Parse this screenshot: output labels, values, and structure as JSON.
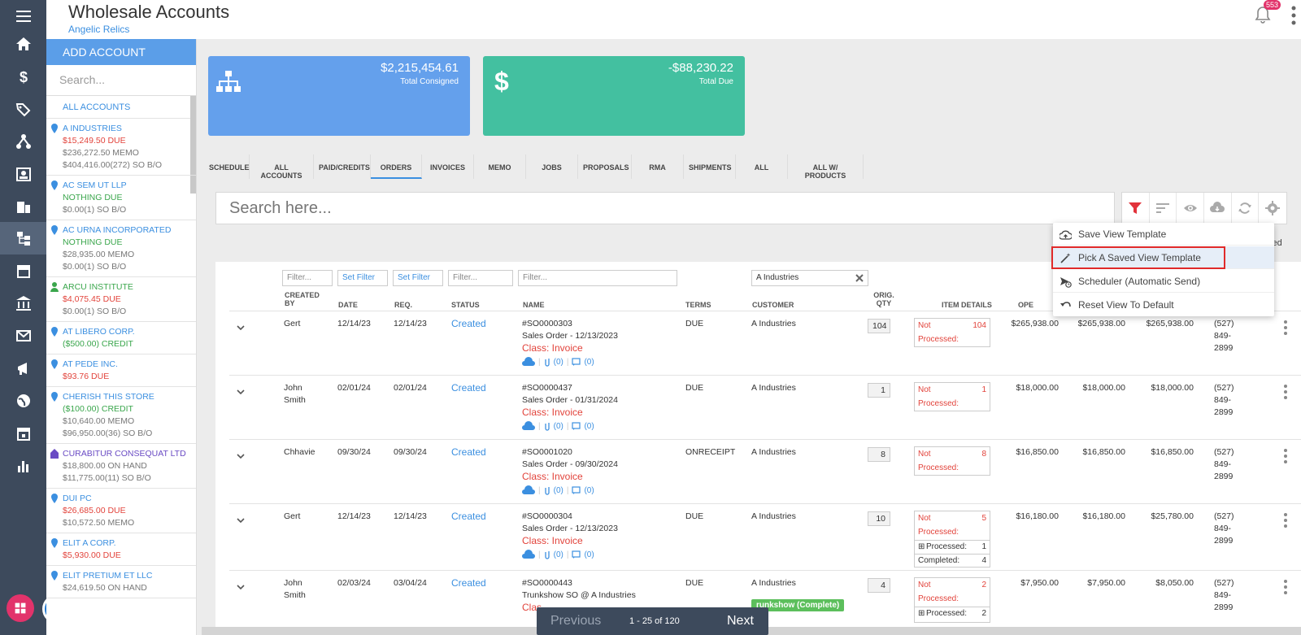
{
  "header": {
    "title": "Wholesale Accounts",
    "subtitle": "Angelic Relics",
    "notification_count": "553"
  },
  "sidebar": {
    "add_label": "ADD ACCOUNT",
    "search_placeholder": "Search...",
    "all_label": "ALL ACCOUNTS",
    "accounts": [
      {
        "name": "A INDUSTRIES",
        "lines": [
          "$15,249.50 DUE",
          "$236,272.50 MEMO",
          "$404,416.00(272) SO B/O"
        ]
      },
      {
        "name": "AC SEM UT LLP",
        "lines": [
          "NOTHING DUE",
          "$0.00(1) SO B/O"
        ]
      },
      {
        "name": "AC URNA INCORPORATED",
        "lines": [
          "NOTHING DUE",
          "$28,935.00 MEMO",
          "$0.00(1) SO B/O"
        ]
      },
      {
        "name": "ARCU INSTITUTE",
        "lines": [
          "$4,075.45 DUE",
          "$0.00(1) SO B/O"
        ]
      },
      {
        "name": "AT LIBERO CORP.",
        "lines": [
          "($500.00) CREDIT"
        ]
      },
      {
        "name": "AT PEDE INC.",
        "lines": [
          "$93.76 DUE"
        ]
      },
      {
        "name": "CHERISH THIS STORE",
        "lines": [
          "($100.00) CREDIT",
          "$10,640.00 MEMO",
          "$96,950.00(36) SO B/O"
        ]
      },
      {
        "name": "CURABITUR CONSEQUAT LTD",
        "lines": [
          "$18,800.00 ON HAND",
          "$11,775.00(11) SO B/O"
        ]
      },
      {
        "name": "DUI PC",
        "lines": [
          "$26,685.00 DUE",
          "$10,572.50 MEMO"
        ]
      },
      {
        "name": "ELIT A CORP.",
        "lines": [
          "$5,930.00 DUE"
        ]
      },
      {
        "name": "ELIT PRETIUM ET LLC",
        "lines": [
          "$24,619.50 ON HAND"
        ]
      }
    ]
  },
  "cards": {
    "consigned": {
      "amount": "$2,215,454.61",
      "label": "Total Consigned"
    },
    "due": {
      "amount": "-$88,230.22",
      "label": "Total Due"
    }
  },
  "tabs": [
    "SCHEDULE",
    "ALL ACCOUNTS",
    "PAID/CREDITS",
    "ORDERS",
    "INVOICES",
    "MEMO",
    "JOBS",
    "PROPOSALS",
    "RMA",
    "SHIPMENTS",
    "ALL",
    "ALL W/ PRODUCTS"
  ],
  "search": {
    "placeholder": "Search here..."
  },
  "filters": {
    "f1": "Filter...",
    "f2": "Set Filter",
    "f3": "Set Filter",
    "f4": "Filter...",
    "f5": "Filter...",
    "customer": "A Industries"
  },
  "columns": {
    "created_by": "CREATED BY",
    "date": "DATE",
    "req": "REQ.",
    "status": "STATUS",
    "name": "NAME",
    "terms": "TERMS",
    "customer": "CUSTOMER",
    "orig_qty": "ORIG. QTY",
    "item_details": "ITEM DETAILS",
    "open": "OPE",
    "extra": "cted"
  },
  "rows": [
    {
      "created_by": "Gert",
      "date": "12/14/23",
      "req": "12/14/23",
      "status": "Created",
      "so": "#SO0000303",
      "desc": "Sales Order - 12/13/2023",
      "cls": "Class: Invoice",
      "att": "(0)",
      "msg": "(0)",
      "terms": "DUE",
      "customer": "A Industries",
      "qty": "104",
      "np_label1": "Not",
      "np_label2": "Processed:",
      "np_val": "104",
      "amt1": "$265,938.00",
      "amt2": "$265,938.00",
      "amt3": "$265,938.00",
      "p1": "(527)",
      "p2": "849-",
      "p3": "2899"
    },
    {
      "created_by": "John Smith",
      "date": "02/01/24",
      "req": "02/01/24",
      "status": "Created",
      "so": "#SO0000437",
      "desc": "Sales Order - 01/31/2024",
      "cls": "Class: Invoice",
      "att": "(0)",
      "msg": "(0)",
      "terms": "DUE",
      "customer": "A Industries",
      "qty": "1",
      "np_label1": "Not",
      "np_label2": "Processed:",
      "np_val": "1",
      "amt1": "$18,000.00",
      "amt2": "$18,000.00",
      "amt3": "$18,000.00",
      "p1": "(527)",
      "p2": "849-",
      "p3": "2899"
    },
    {
      "created_by": "Chhavie",
      "date": "09/30/24",
      "req": "09/30/24",
      "status": "Created",
      "so": "#SO0001020",
      "desc": "Sales Order - 09/30/2024",
      "cls": "Class: Invoice",
      "att": "(0)",
      "msg": "(0)",
      "terms": "ONRECEIPT",
      "customer": "A Industries",
      "qty": "8",
      "np_label1": "Not",
      "np_label2": "Processed:",
      "np_val": "8",
      "amt1": "$16,850.00",
      "amt2": "$16,850.00",
      "amt3": "$16,850.00",
      "p1": "(527)",
      "p2": "849-",
      "p3": "2899"
    },
    {
      "created_by": "Gert",
      "date": "12/14/23",
      "req": "12/14/23",
      "status": "Created",
      "so": "#SO0000304",
      "desc": "Sales Order - 12/13/2023",
      "cls": "Class: Invoice",
      "att": "(0)",
      "msg": "(0)",
      "terms": "DUE",
      "customer": "A Industries",
      "qty": "10",
      "np_label1": "Not",
      "np_label2": "Processed:",
      "np_val": "5",
      "proc_label": "Processed:",
      "proc_val": "1",
      "comp_label": "Completed:",
      "comp_val": "4",
      "amt1": "$16,180.00",
      "amt2": "$16,180.00",
      "amt3": "$25,780.00",
      "p1": "(527)",
      "p2": "849-",
      "p3": "2899"
    },
    {
      "created_by": "John Smith",
      "date": "02/03/24",
      "req": "03/04/24",
      "status": "Created",
      "so": "#SO0000443",
      "desc": "Trunkshow SO @ A Industries",
      "cls": "Clas",
      "terms": "DUE",
      "customer": "A Industries",
      "badge": "runkshow (Complete)",
      "qty": "4",
      "np_label1": "Not",
      "np_label2": "Processed:",
      "np_val": "2",
      "proc_label": "Processed:",
      "proc_val": "2",
      "amt1": "$7,950.00",
      "amt2": "$7,950.00",
      "amt3": "$8,050.00",
      "p1": "(527)",
      "p2": "849-",
      "p3": "2899"
    }
  ],
  "menu": {
    "save": "Save View Template",
    "pick": "Pick A Saved View Template",
    "scheduler": "Scheduler (Automatic Send)",
    "reset": "Reset View To Default"
  },
  "pager": {
    "prev": "Previous",
    "count": "1 - 25 of 120",
    "next": "Next"
  },
  "colors": {
    "rail": "#3d4a5c",
    "accent": "#3b8fe0",
    "card_blue": "#64a0ec",
    "card_green": "#43c0a0",
    "alert": "#e2433b"
  }
}
